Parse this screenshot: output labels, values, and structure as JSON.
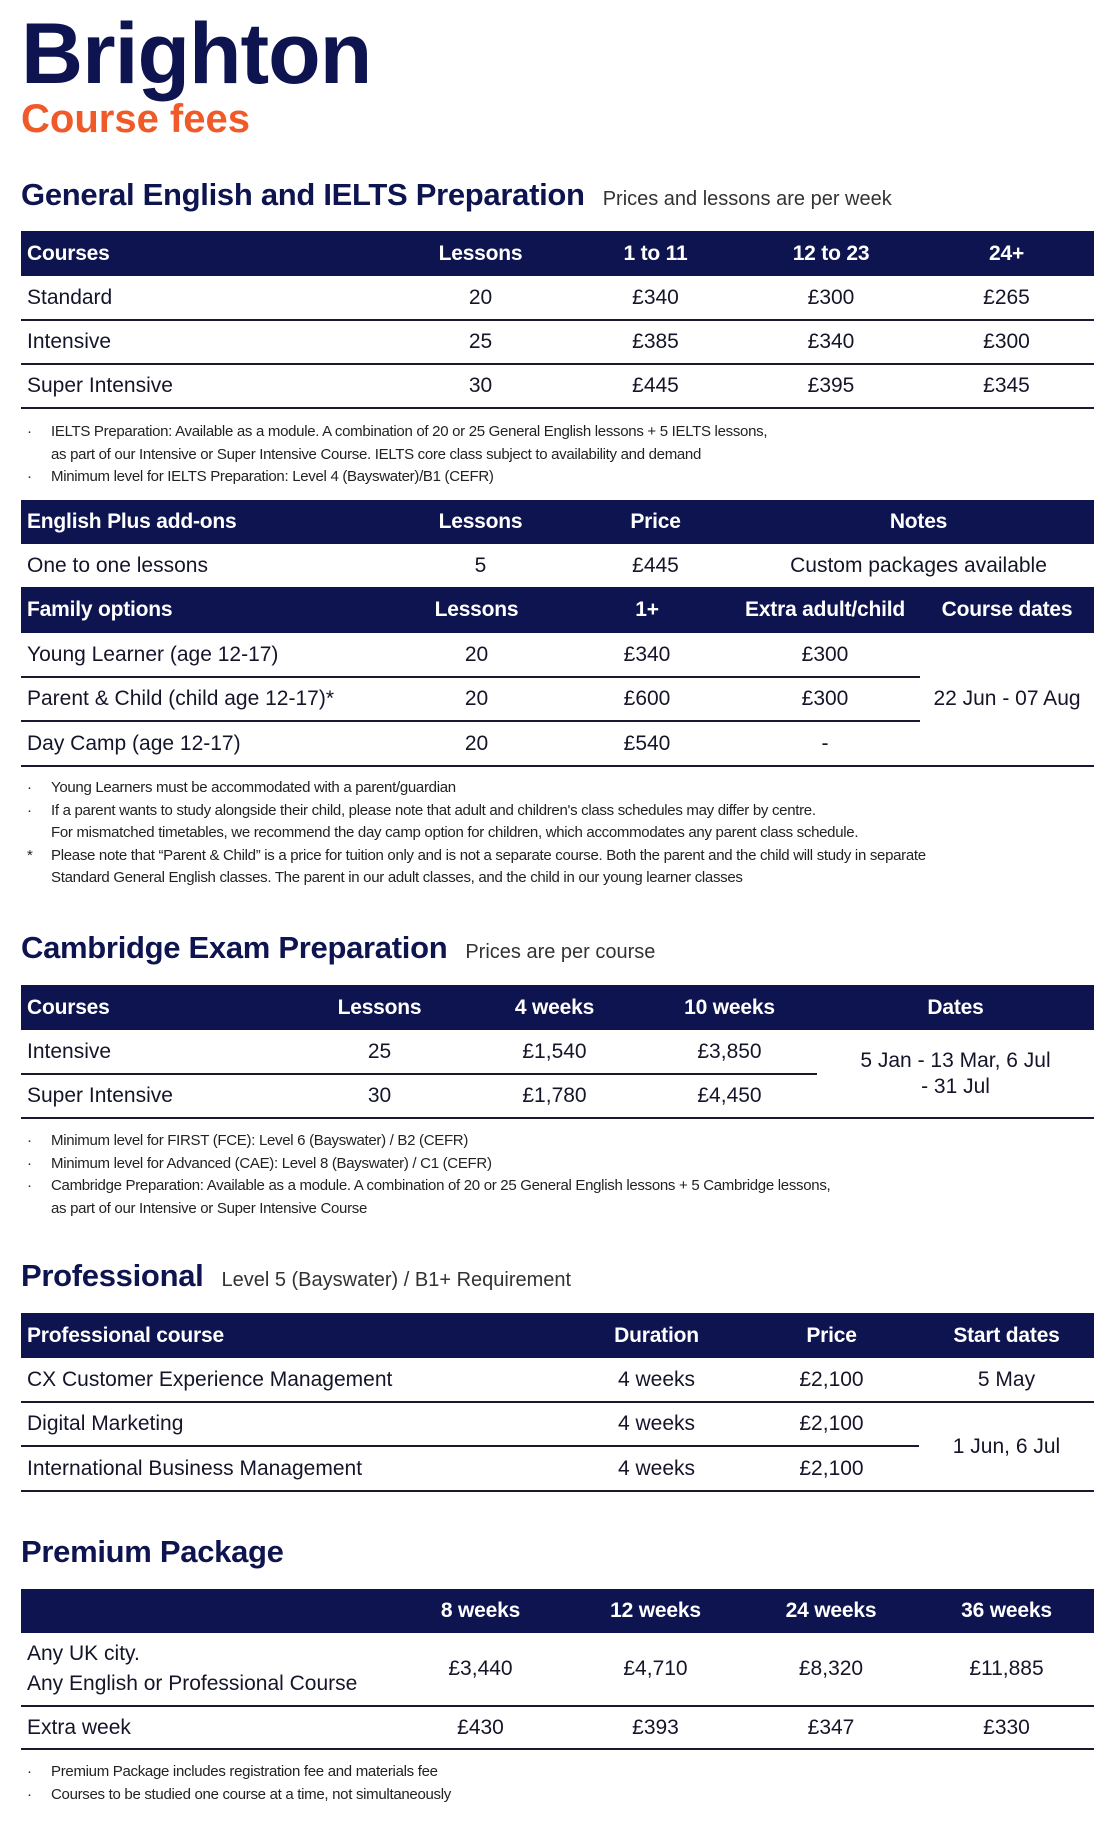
{
  "header": {
    "title": "Brighton",
    "subtitle": "Course fees"
  },
  "colors": {
    "navy": "#0e1450",
    "orange": "#f05a28"
  },
  "general_english": {
    "heading": "General English and IELTS Preparation",
    "subheading": "Prices and lessons are per week",
    "headers": [
      "Courses",
      "Lessons",
      "1 to 11",
      "12 to 23",
      "24+"
    ],
    "rows": [
      [
        "Standard",
        "20",
        "£340",
        "£300",
        "£265"
      ],
      [
        "Intensive",
        "25",
        "£385",
        "£340",
        "£300"
      ],
      [
        "Super Intensive",
        "30",
        "£445",
        "£395",
        "£345"
      ]
    ],
    "notes": [
      {
        "marker": "·",
        "lines": [
          "IELTS Preparation: Available as a module. A combination of 20 or 25 General English lessons + 5 IELTS lessons,",
          "as part of our Intensive or Super Intensive Course. IELTS core class subject to availability and demand"
        ]
      },
      {
        "marker": "·",
        "lines": [
          "Minimum level for IELTS Preparation: Level 4 (Bayswater)/B1 (CEFR)"
        ]
      }
    ]
  },
  "addons": {
    "headers": [
      "English Plus add-ons",
      "Lessons",
      "Price",
      "Notes"
    ],
    "rows": [
      [
        "One to one lessons",
        "5",
        "£445",
        "Custom packages available"
      ]
    ]
  },
  "family": {
    "headers": [
      "Family options",
      "Lessons",
      "1+",
      "Extra adult/child",
      "Course dates"
    ],
    "rows": [
      [
        "Young Learner (age 12-17)",
        "20",
        "£340",
        "£300"
      ],
      [
        "Parent & Child (child age 12-17)*",
        "20",
        "£600",
        "£300"
      ],
      [
        "Day Camp (age 12-17)",
        "20",
        "£540",
        "-"
      ]
    ],
    "course_dates": "22 Jun - 07 Aug",
    "notes": [
      {
        "marker": "·",
        "lines": [
          "Young Learners must be accommodated with a parent/guardian"
        ]
      },
      {
        "marker": "·",
        "lines": [
          "If a parent wants to study alongside their child, please note that adult and children's class schedules may differ by centre.",
          "For mismatched timetables, we recommend the day camp option for children, which accommodates any parent class schedule."
        ]
      },
      {
        "marker": "*",
        "lines": [
          "Please note that “Parent & Child” is a price for tuition only and is not a separate course. Both the parent and the child will study in separate",
          "Standard General English classes. The parent in our adult classes, and the child in our young learner classes"
        ]
      }
    ]
  },
  "cambridge": {
    "heading": "Cambridge Exam Preparation",
    "subheading": "Prices are per course",
    "headers": [
      "Courses",
      "Lessons",
      "4 weeks",
      "10 weeks",
      "Dates"
    ],
    "rows": [
      [
        "Intensive",
        "25",
        "£1,540",
        "£3,850"
      ],
      [
        "Super Intensive",
        "30",
        "£1,780",
        "£4,450"
      ]
    ],
    "dates": "5 Jan - 13 Mar, 6 Jul - 31 Jul",
    "notes": [
      {
        "marker": "·",
        "lines": [
          "Minimum level for FIRST (FCE): Level 6 (Bayswater) / B2 (CEFR)"
        ]
      },
      {
        "marker": "·",
        "lines": [
          "Minimum level for Advanced (CAE): Level 8 (Bayswater) / C1 (CEFR)"
        ]
      },
      {
        "marker": "·",
        "lines": [
          "Cambridge Preparation: Available as a module. A combination of 20 or 25 General English lessons + 5 Cambridge lessons,",
          "as part of our Intensive or Super Intensive Course"
        ]
      }
    ]
  },
  "professional": {
    "heading": "Professional",
    "subheading": "Level 5 (Bayswater) / B1+ Requirement",
    "headers": [
      "Professional course",
      "Duration",
      "Price",
      "Start dates"
    ],
    "rows": [
      [
        "CX Customer Experience Management",
        "4 weeks",
        "£2,100",
        "5 May"
      ],
      [
        "Digital Marketing",
        "4 weeks",
        "£2,100"
      ],
      [
        "International Business Management",
        "4 weeks",
        "£2,100"
      ]
    ],
    "shared_start_dates": "1 Jun, 6 Jul"
  },
  "premium": {
    "heading": "Premium Package",
    "headers": [
      "",
      "8 weeks",
      "12 weeks",
      "24 weeks",
      "36 weeks"
    ],
    "rows": [
      [
        "Any UK city.\nAny English or Professional Course",
        "£3,440",
        "£4,710",
        "£8,320",
        "£11,885"
      ],
      [
        "Extra week",
        "£430",
        "£393",
        "£347",
        "£330"
      ]
    ],
    "notes": [
      {
        "marker": "·",
        "lines": [
          "Premium Package includes registration fee and materials fee"
        ]
      },
      {
        "marker": "·",
        "lines": [
          "Courses to be studied one course at a time, not simultaneously"
        ]
      }
    ]
  }
}
